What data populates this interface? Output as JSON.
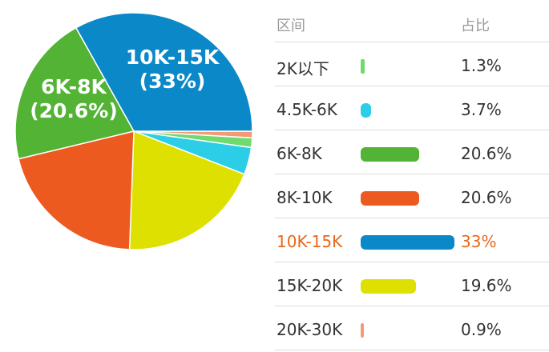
{
  "chart_data": {
    "type": "pie",
    "slices": [
      {
        "label": "2K以下",
        "value": 1.3,
        "display": "1.3%",
        "color": "#6ddb6d"
      },
      {
        "label": "4.5K-6K",
        "value": 3.7,
        "display": "3.7%",
        "color": "#2ccde6"
      },
      {
        "label": "6K-8K",
        "value": 20.6,
        "display": "20.6%",
        "color": "#52b335"
      },
      {
        "label": "8K-10K",
        "value": 20.6,
        "display": "20.6%",
        "color": "#ec5a1f"
      },
      {
        "label": "10K-15K",
        "value": 33,
        "display": "33%",
        "color": "#0a88c8"
      },
      {
        "label": "15K-20K",
        "value": 19.6,
        "display": "19.6%",
        "color": "#dde000"
      },
      {
        "label": "20K-30K",
        "value": 0.9,
        "display": "0.9%",
        "color": "#f59a75"
      }
    ],
    "slice_labels": [
      {
        "line1": "10K-15K",
        "line2": "(33%)"
      },
      {
        "line1": "6K-8K",
        "line2": "(20.6%)"
      }
    ],
    "highlighted": "10K-15K"
  },
  "table": {
    "header_range": "区间",
    "header_share": "占比"
  }
}
